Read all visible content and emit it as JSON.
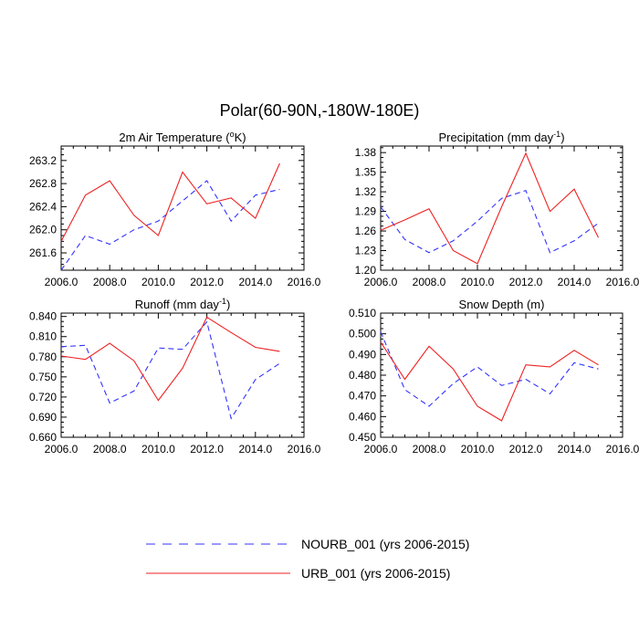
{
  "figure_title": "Polar(60-90N,-180W-180E)",
  "colors": {
    "nourb": "#3333ff",
    "urb": "#ee2222",
    "axis": "#000000"
  },
  "legend": [
    {
      "label": "NOURB_001 (yrs 2006-2015)",
      "style": "dashed",
      "color": "#3333ff"
    },
    {
      "label": "URB_001 (yrs 2006-2015)",
      "style": "solid",
      "color": "#ee2222"
    }
  ],
  "chart_data": [
    {
      "type": "line",
      "title": "2m Air Temperature (°K)",
      "title_base": "2m Air Temperature (",
      "title_sup": "o",
      "title_tail": "K)",
      "xlabel": "",
      "ylabel": "",
      "xlim": [
        2006,
        2016
      ],
      "ylim": [
        261.3,
        263.45
      ],
      "xticks": [
        2006,
        2008,
        2010,
        2012,
        2014,
        2016
      ],
      "xtick_labels": [
        "2006.0",
        "2008.0",
        "2010.0",
        "2012.0",
        "2014.0",
        "2016.0"
      ],
      "yticks": [
        261.6,
        262.0,
        262.4,
        262.8,
        263.2
      ],
      "ytick_labels": [
        "261.6",
        "262.0",
        "262.4",
        "262.8",
        "263.2"
      ],
      "x": [
        2006,
        2007,
        2008,
        2009,
        2010,
        2011,
        2012,
        2013,
        2014,
        2015
      ],
      "series": [
        {
          "name": "NOURB_001 (yrs 2006-2015)",
          "style": "dashed",
          "values": [
            261.3,
            261.9,
            261.75,
            262.0,
            262.15,
            262.5,
            262.85,
            262.15,
            262.6,
            262.7
          ]
        },
        {
          "name": "URB_001 (yrs 2006-2015)",
          "style": "solid",
          "values": [
            261.8,
            262.6,
            262.85,
            262.25,
            261.9,
            263.0,
            262.45,
            262.55,
            262.2,
            263.15
          ]
        }
      ]
    },
    {
      "type": "line",
      "title": "Precipitation (mm day⁻¹)",
      "title_base": "Precipitation (mm day",
      "title_sup": "-1",
      "title_tail": ")",
      "xlabel": "",
      "ylabel": "",
      "xlim": [
        2006,
        2016
      ],
      "ylim": [
        1.2,
        1.39
      ],
      "xticks": [
        2006,
        2008,
        2010,
        2012,
        2014,
        2016
      ],
      "xtick_labels": [
        "2006.0",
        "2008.0",
        "2010.0",
        "2012.0",
        "2014.0",
        "2016.0"
      ],
      "yticks": [
        1.2,
        1.23,
        1.26,
        1.29,
        1.32,
        1.35,
        1.38
      ],
      "ytick_labels": [
        "1.20",
        "1.23",
        "1.26",
        "1.29",
        "1.32",
        "1.35",
        "1.38"
      ],
      "x": [
        2006,
        2007,
        2008,
        2009,
        2010,
        2011,
        2012,
        2013,
        2014,
        2015
      ],
      "series": [
        {
          "name": "NOURB_001 (yrs 2006-2015)",
          "style": "dashed",
          "values": [
            1.297,
            1.247,
            1.227,
            1.245,
            1.275,
            1.31,
            1.322,
            1.227,
            1.245,
            1.272
          ]
        },
        {
          "name": "URB_001 (yrs 2006-2015)",
          "style": "solid",
          "values": [
            1.261,
            1.277,
            1.294,
            1.23,
            1.21,
            1.297,
            1.379,
            1.29,
            1.324,
            1.25
          ]
        }
      ]
    },
    {
      "type": "line",
      "title": "Runoff (mm day⁻¹)",
      "title_base": "Runoff (mm day",
      "title_sup": "-1",
      "title_tail": ")",
      "xlabel": "",
      "ylabel": "",
      "xlim": [
        2006,
        2016
      ],
      "ylim": [
        0.66,
        0.845
      ],
      "xticks": [
        2006,
        2008,
        2010,
        2012,
        2014,
        2016
      ],
      "xtick_labels": [
        "2006.0",
        "2008.0",
        "2010.0",
        "2012.0",
        "2014.0",
        "2016.0"
      ],
      "yticks": [
        0.66,
        0.69,
        0.72,
        0.75,
        0.78,
        0.81,
        0.84
      ],
      "ytick_labels": [
        "0.660",
        "0.690",
        "0.720",
        "0.750",
        "0.780",
        "0.810",
        "0.840"
      ],
      "x": [
        2006,
        2007,
        2008,
        2009,
        2010,
        2011,
        2012,
        2013,
        2014,
        2015
      ],
      "series": [
        {
          "name": "NOURB_001 (yrs 2006-2015)",
          "style": "dashed",
          "values": [
            0.795,
            0.797,
            0.711,
            0.729,
            0.793,
            0.791,
            0.832,
            0.688,
            0.746,
            0.77
          ]
        },
        {
          "name": "URB_001 (yrs 2006-2015)",
          "style": "solid",
          "values": [
            0.781,
            0.776,
            0.8,
            0.774,
            0.715,
            0.763,
            0.839,
            0.816,
            0.794,
            0.788
          ]
        }
      ]
    },
    {
      "type": "line",
      "title": "Snow Depth (m)",
      "title_base": "Snow Depth (m)",
      "title_sup": "",
      "title_tail": "",
      "xlabel": "",
      "ylabel": "",
      "xlim": [
        2006,
        2016
      ],
      "ylim": [
        0.45,
        0.51
      ],
      "xticks": [
        2006,
        2008,
        2010,
        2012,
        2014,
        2016
      ],
      "xtick_labels": [
        "2006.0",
        "2008.0",
        "2010.0",
        "2012.0",
        "2014.0",
        "2016.0"
      ],
      "yticks": [
        0.45,
        0.46,
        0.47,
        0.48,
        0.49,
        0.5,
        0.51
      ],
      "ytick_labels": [
        "0.450",
        "0.460",
        "0.470",
        "0.480",
        "0.490",
        "0.500",
        "0.510"
      ],
      "x": [
        2006,
        2007,
        2008,
        2009,
        2010,
        2011,
        2012,
        2013,
        2014,
        2015
      ],
      "series": [
        {
          "name": "NOURB_001 (yrs 2006-2015)",
          "style": "dashed",
          "values": [
            0.501,
            0.473,
            0.465,
            0.476,
            0.484,
            0.475,
            0.478,
            0.471,
            0.486,
            0.483
          ]
        },
        {
          "name": "URB_001 (yrs 2006-2015)",
          "style": "solid",
          "values": [
            0.496,
            0.478,
            0.494,
            0.483,
            0.465,
            0.458,
            0.485,
            0.484,
            0.492,
            0.485
          ]
        }
      ]
    }
  ]
}
